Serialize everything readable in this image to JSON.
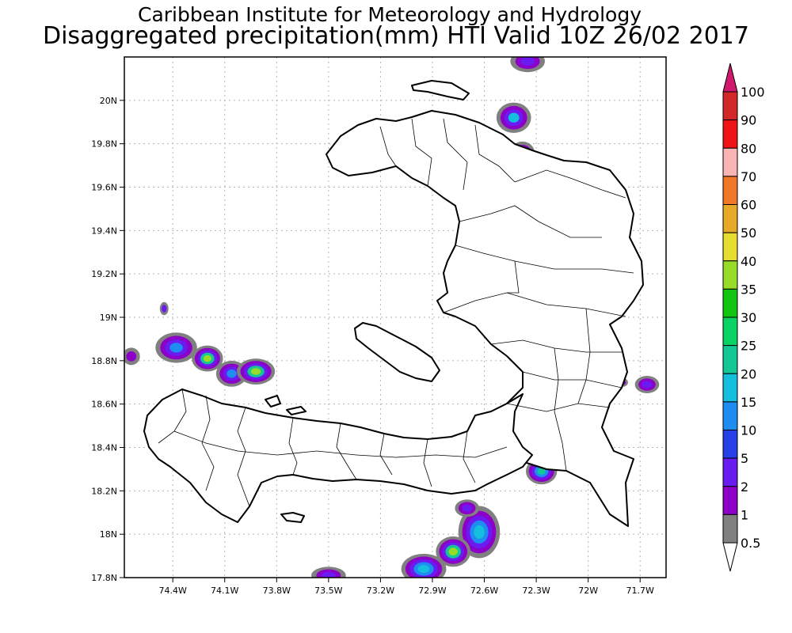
{
  "title": {
    "line1": "Caribbean Institute for Meteorology and Hydrology",
    "line2": "Disaggregated precipitation(mm) HTI Valid 10Z 26/02 2017"
  },
  "map": {
    "lon_range": [
      -74.68,
      -71.55
    ],
    "lat_range": [
      17.8,
      20.2
    ],
    "lon_ticks": [
      {
        "v": -74.4,
        "label": "74.4W"
      },
      {
        "v": -74.1,
        "label": "74.1W"
      },
      {
        "v": -73.8,
        "label": "73.8W"
      },
      {
        "v": -73.5,
        "label": "73.5W"
      },
      {
        "v": -73.2,
        "label": "73.2W"
      },
      {
        "v": -72.9,
        "label": "72.9W"
      },
      {
        "v": -72.6,
        "label": "72.6W"
      },
      {
        "v": -72.3,
        "label": "72.3W"
      },
      {
        "v": -72.0,
        "label": "72W"
      },
      {
        "v": -71.7,
        "label": "71.7W"
      }
    ],
    "lat_ticks": [
      {
        "v": 17.8,
        "label": "17.8N"
      },
      {
        "v": 18.0,
        "label": "18N"
      },
      {
        "v": 18.2,
        "label": "18.2N"
      },
      {
        "v": 18.4,
        "label": "18.4N"
      },
      {
        "v": 18.6,
        "label": "18.6N"
      },
      {
        "v": 18.8,
        "label": "18.8N"
      },
      {
        "v": 19.0,
        "label": "19N"
      },
      {
        "v": 19.2,
        "label": "19.2N"
      },
      {
        "v": 19.4,
        "label": "19.4N"
      },
      {
        "v": 19.6,
        "label": "19.6N"
      },
      {
        "v": 19.8,
        "label": "19.8N"
      },
      {
        "v": 20.0,
        "label": "20N"
      }
    ]
  },
  "legend": {
    "items": [
      {
        "label": "0.5",
        "color": "#ffffff"
      },
      {
        "label": "1",
        "color": "#808080"
      },
      {
        "label": "2",
        "color": "#8c00c8"
      },
      {
        "label": "5",
        "color": "#6a1cf0"
      },
      {
        "label": "10",
        "color": "#2840e8"
      },
      {
        "label": "15",
        "color": "#1e8cf0"
      },
      {
        "label": "20",
        "color": "#14bedc"
      },
      {
        "label": "25",
        "color": "#14c896"
      },
      {
        "label": "30",
        "color": "#0ad264"
      },
      {
        "label": "35",
        "color": "#12c412"
      },
      {
        "label": "40",
        "color": "#96dc28"
      },
      {
        "label": "50",
        "color": "#e6dc32"
      },
      {
        "label": "60",
        "color": "#e6aa28"
      },
      {
        "label": "70",
        "color": "#f07828"
      },
      {
        "label": "80",
        "color": "#fab4b4"
      },
      {
        "label": "90",
        "color": "#f01414"
      },
      {
        "label": "100",
        "color": "#d22828"
      }
    ],
    "top_color": "#d2186e"
  },
  "precip_blobs": [
    {
      "lon": -74.38,
      "lat": 18.86,
      "rlon": 0.12,
      "rlat": 0.07,
      "levels": [
        "#808080",
        "#8c00c8",
        "#6a1cf0",
        "#1e8cf0"
      ]
    },
    {
      "lon": -74.2,
      "lat": 18.81,
      "rlon": 0.09,
      "rlat": 0.06,
      "levels": [
        "#808080",
        "#8c00c8",
        "#6a1cf0",
        "#14c896",
        "#96dc28"
      ]
    },
    {
      "lon": -74.06,
      "lat": 18.74,
      "rlon": 0.09,
      "rlat": 0.06,
      "levels": [
        "#808080",
        "#8c00c8",
        "#6a1cf0",
        "#1e8cf0"
      ]
    },
    {
      "lon": -73.92,
      "lat": 18.75,
      "rlon": 0.11,
      "rlat": 0.06,
      "levels": [
        "#808080",
        "#8c00c8",
        "#6a1cf0",
        "#14c896",
        "#96dc28"
      ]
    },
    {
      "lon": -74.64,
      "lat": 18.82,
      "rlon": 0.05,
      "rlat": 0.04,
      "levels": [
        "#808080",
        "#8c00c8"
      ]
    },
    {
      "lon": -74.45,
      "lat": 19.04,
      "rlon": 0.025,
      "rlat": 0.03,
      "levels": [
        "#808080",
        "#6a1cf0"
      ]
    },
    {
      "lon": -72.43,
      "lat": 19.92,
      "rlon": 0.1,
      "rlat": 0.07,
      "levels": [
        "#808080",
        "#8c00c8",
        "#6a1cf0",
        "#14bedc"
      ]
    },
    {
      "lon": -72.35,
      "lat": 20.18,
      "rlon": 0.1,
      "rlat": 0.05,
      "levels": [
        "#808080",
        "#8c00c8",
        "#6a1cf0"
      ]
    },
    {
      "lon": -72.38,
      "lat": 19.76,
      "rlon": 0.07,
      "rlat": 0.05,
      "levels": [
        "#808080",
        "#8c00c8",
        "#6a1cf0"
      ]
    },
    {
      "lon": -72.27,
      "lat": 18.29,
      "rlon": 0.09,
      "rlat": 0.06,
      "levels": [
        "#808080",
        "#8c00c8",
        "#6a1cf0",
        "#1e8cf0",
        "#14c896"
      ]
    },
    {
      "lon": -72.63,
      "lat": 18.01,
      "rlon": 0.12,
      "rlat": 0.12,
      "levels": [
        "#808080",
        "#8c00c8",
        "#6a1cf0",
        "#1e8cf0",
        "#14bedc"
      ]
    },
    {
      "lon": -72.78,
      "lat": 17.92,
      "rlon": 0.1,
      "rlat": 0.07,
      "levels": [
        "#808080",
        "#8c00c8",
        "#6a1cf0",
        "#14c896",
        "#96dc28"
      ]
    },
    {
      "lon": -72.95,
      "lat": 17.84,
      "rlon": 0.13,
      "rlat": 0.07,
      "levels": [
        "#808080",
        "#8c00c8",
        "#6a1cf0",
        "#1e8cf0",
        "#14bedc"
      ]
    },
    {
      "lon": -72.7,
      "lat": 18.12,
      "rlon": 0.07,
      "rlat": 0.04,
      "levels": [
        "#808080",
        "#8c00c8",
        "#6a1cf0"
      ]
    },
    {
      "lon": -73.5,
      "lat": 17.81,
      "rlon": 0.1,
      "rlat": 0.04,
      "levels": [
        "#808080",
        "#8c00c8",
        "#6a1cf0"
      ]
    },
    {
      "lon": -71.66,
      "lat": 18.69,
      "rlon": 0.07,
      "rlat": 0.04,
      "levels": [
        "#808080",
        "#8c00c8",
        "#6a1cf0"
      ]
    },
    {
      "lon": -71.8,
      "lat": 18.7,
      "rlon": 0.03,
      "rlat": 0.02,
      "levels": [
        "#808080",
        "#8c00c8"
      ]
    }
  ]
}
